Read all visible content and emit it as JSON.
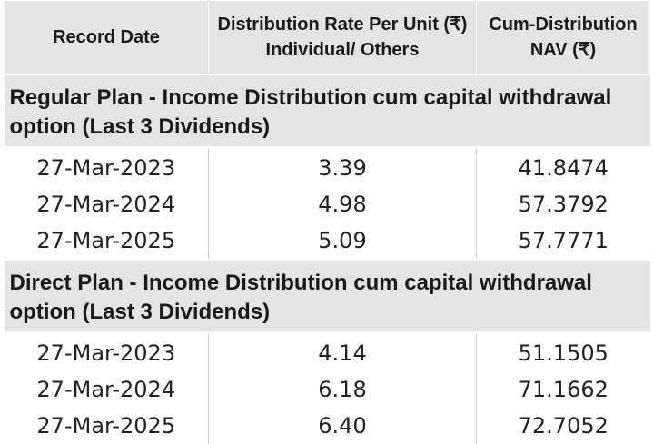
{
  "header": {
    "record_date": "Record Date",
    "rate_line1": "Distribution Rate Per Unit  (₹)",
    "rate_line2": "Individual/ Others",
    "nav_line1": "Cum-Distribution",
    "nav_line2": "NAV (₹)"
  },
  "sections": [
    {
      "title": "Regular Plan - Income Distribution cum capital withdrawal option (Last 3 Dividends)",
      "rows": [
        {
          "date": "27-Mar-2023",
          "rate": "3.39",
          "nav": "41.8474"
        },
        {
          "date": "27-Mar-2024",
          "rate": "4.98",
          "nav": "57.3792"
        },
        {
          "date": "27-Mar-2025",
          "rate": "5.09",
          "nav": "57.7771"
        }
      ]
    },
    {
      "title": "Direct Plan - Income Distribution cum capital withdrawal option (Last 3 Dividends)",
      "rows": [
        {
          "date": "27-Mar-2023",
          "rate": "4.14",
          "nav": "51.1505"
        },
        {
          "date": "27-Mar-2024",
          "rate": "6.18",
          "nav": "71.1662"
        },
        {
          "date": "27-Mar-2025",
          "rate": "6.40",
          "nav": "72.7052"
        }
      ]
    }
  ]
}
